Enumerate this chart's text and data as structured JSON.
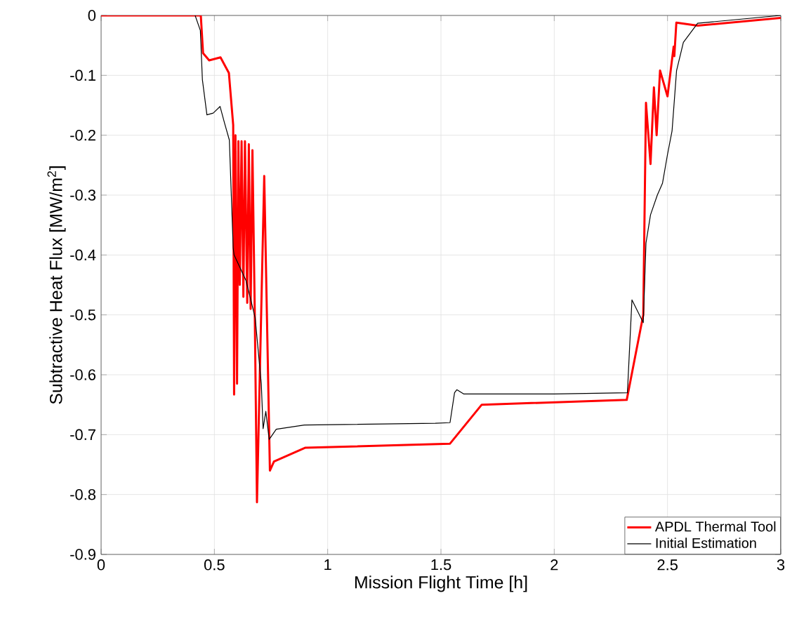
{
  "chart_data": {
    "type": "line",
    "xlabel": "Mission Flight Time [h]",
    "ylabel": "Subtractive Heat Flux  [MW/m$^{2}$]",
    "xlim": [
      0,
      3
    ],
    "ylim": [
      -0.9,
      0
    ],
    "xticks": [
      0,
      0.5,
      1,
      1.5,
      2,
      2.5,
      3
    ],
    "yticks": [
      -0.9,
      -0.8,
      -0.7,
      -0.6,
      -0.5,
      -0.4,
      -0.3,
      -0.2,
      -0.1,
      0
    ],
    "grid": true,
    "legend": "bottom right",
    "marker": "none",
    "line_style": "solid",
    "series": [
      {
        "name": "APDL Thermal Tool",
        "color": "#ff0000",
        "x": [
          0,
          0.44,
          0.45,
          0.477,
          0.527,
          0.564,
          0.583,
          0.587,
          0.593,
          0.6,
          0.606,
          0.612,
          0.62,
          0.628,
          0.635,
          0.645,
          0.652,
          0.66,
          0.668,
          0.678,
          0.688,
          0.72,
          0.745,
          0.763,
          0.9,
          1.54,
          1.68,
          2.32,
          2.393,
          2.405,
          2.425,
          2.44,
          2.452,
          2.467,
          2.5,
          2.527,
          2.53,
          2.539,
          2.633,
          3.0
        ],
        "values": [
          0,
          0,
          -0.063,
          -0.075,
          -0.07,
          -0.096,
          -0.183,
          -0.633,
          -0.2,
          -0.615,
          -0.21,
          -0.45,
          -0.21,
          -0.47,
          -0.21,
          -0.48,
          -0.215,
          -0.49,
          -0.225,
          -0.49,
          -0.813,
          -0.268,
          -0.76,
          -0.745,
          -0.722,
          -0.715,
          -0.65,
          -0.642,
          -0.5,
          -0.146,
          -0.248,
          -0.12,
          -0.2,
          -0.092,
          -0.135,
          -0.052,
          -0.068,
          -0.012,
          -0.017,
          -0.004
        ]
      },
      {
        "name": "Initial Estimation",
        "color": "#000000",
        "x": [
          0.415,
          0.438,
          0.447,
          0.467,
          0.495,
          0.525,
          0.545,
          0.566,
          0.583,
          0.587,
          0.64,
          0.66,
          0.68,
          0.707,
          0.715,
          0.727,
          0.742,
          0.773,
          0.897,
          1.475,
          1.54,
          1.56,
          1.57,
          1.6,
          2.0,
          2.323,
          2.343,
          2.393,
          2.405,
          2.425,
          2.455,
          2.478,
          2.5,
          2.52,
          2.54,
          2.57,
          2.633,
          3.0
        ],
        "values": [
          0,
          -0.025,
          -0.107,
          -0.166,
          -0.163,
          -0.152,
          -0.18,
          -0.208,
          -0.388,
          -0.4,
          -0.443,
          -0.474,
          -0.505,
          -0.615,
          -0.69,
          -0.661,
          -0.708,
          -0.691,
          -0.684,
          -0.681,
          -0.68,
          -0.63,
          -0.625,
          -0.632,
          -0.632,
          -0.63,
          -0.475,
          -0.513,
          -0.38,
          -0.333,
          -0.3,
          -0.28,
          -0.232,
          -0.193,
          -0.092,
          -0.045,
          -0.013,
          0
        ]
      }
    ]
  }
}
